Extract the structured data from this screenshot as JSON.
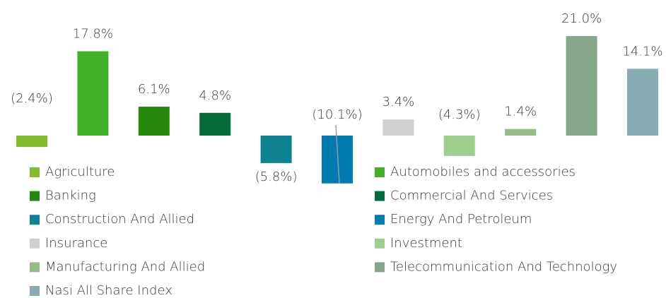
{
  "chart_data": {
    "type": "bar",
    "categories": [
      "Agriculture",
      "Automobiles and accessories",
      "Banking",
      "Commercial And Services",
      "Construction And Allied",
      "Energy And Petroleum",
      "Insurance",
      "Investment",
      "Manufacturing And Allied",
      "Telecommunication And Technology",
      "Nasi All Share Index"
    ],
    "values": [
      -2.4,
      17.8,
      6.1,
      4.8,
      -5.8,
      -10.1,
      3.4,
      -4.3,
      1.4,
      21.0,
      14.1
    ],
    "value_labels": [
      "(2.4%)",
      "17.8%",
      "6.1%",
      "4.8%",
      "(5.8%)",
      "(10.1%)",
      "3.4%",
      "(4.3%)",
      "1.4%",
      "21.0%",
      "14.1%"
    ],
    "colors": [
      "#84bd2e",
      "#43b02a",
      "#26890d",
      "#046a38",
      "#0d8390",
      "#007cb0",
      "#d0d0ce",
      "#9dd08c",
      "#94bc86",
      "#86a68a",
      "#86acb4"
    ],
    "legend_position": "bottom"
  }
}
